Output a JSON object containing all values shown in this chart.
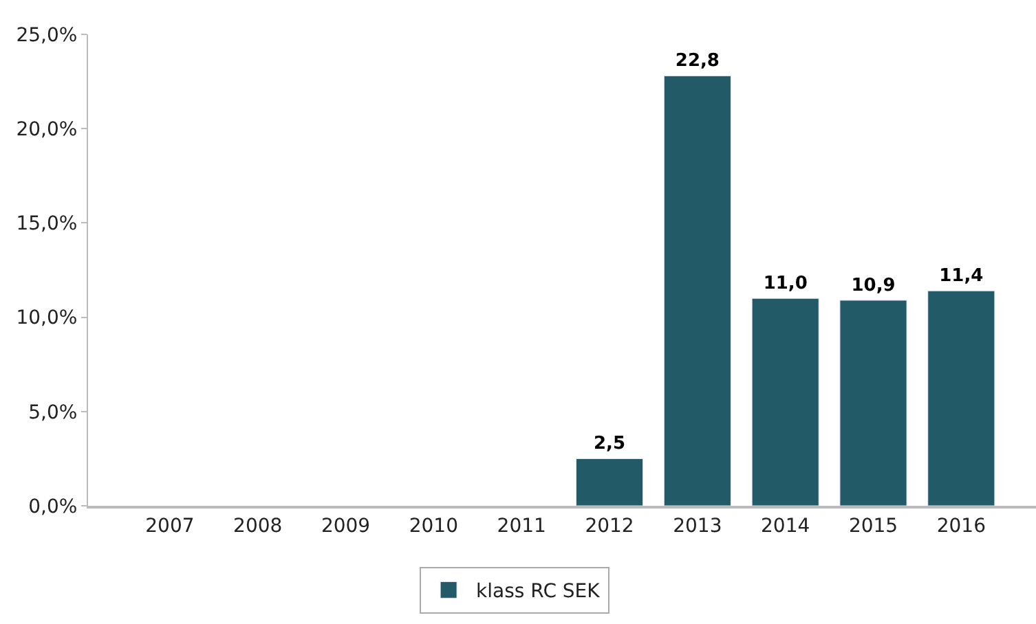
{
  "chart_data": {
    "type": "bar",
    "categories": [
      "2007",
      "2008",
      "2009",
      "2010",
      "2011",
      "2012",
      "2013",
      "2014",
      "2015",
      "2016"
    ],
    "series": [
      {
        "name": "klass RC SEK",
        "color": "#235a68",
        "values": [
          null,
          null,
          null,
          null,
          null,
          2.5,
          22.8,
          11.0,
          10.9,
          11.4
        ],
        "value_labels": [
          null,
          null,
          null,
          null,
          null,
          "2,5",
          "22,8",
          "11,0",
          "10,9",
          "11,4"
        ]
      }
    ],
    "ylim": [
      0,
      25
    ],
    "yticks": [
      {
        "value": 0,
        "label": "0,0%"
      },
      {
        "value": 5,
        "label": "5,0%"
      },
      {
        "value": 10,
        "label": "10,0%"
      },
      {
        "value": 15,
        "label": "15,0%"
      },
      {
        "value": 20,
        "label": "20,0%"
      },
      {
        "value": 25,
        "label": "25,0%"
      }
    ],
    "legend": "bottom"
  }
}
